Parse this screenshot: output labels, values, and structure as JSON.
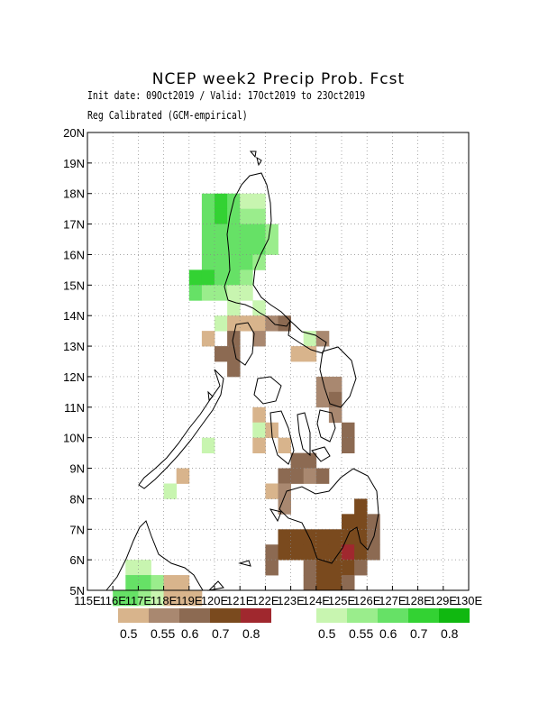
{
  "title": "NCEP week2 Precip Prob. Fcst",
  "subtitle_dates": "Init date: 09Oct2019 / Valid: 17Oct2019 to 23Oct2019",
  "subtitle_method": "Reg Calibrated (GCM-empirical)",
  "map": {
    "lon_range": [
      115,
      130
    ],
    "lat_range": [
      5,
      20
    ],
    "lon_tick_labels": [
      "115E",
      "116E",
      "117E",
      "118E",
      "119E",
      "120E",
      "121E",
      "122E",
      "123E",
      "124E",
      "125E",
      "126E",
      "127E",
      "128E",
      "129E",
      "130E"
    ],
    "lat_tick_labels": [
      "5N",
      "6N",
      "7N",
      "8N",
      "9N",
      "10N",
      "11N",
      "12N",
      "13N",
      "14N",
      "15N",
      "16N",
      "17N",
      "18N",
      "19N",
      "20N"
    ],
    "grid": "dotted",
    "cell_size_deg": 0.5
  },
  "legend_dry": {
    "colors": [
      "#d8b48c",
      "#a98870",
      "#8c6a52",
      "#7a4a1e",
      "#a0282e"
    ],
    "labels": [
      "0.5",
      "0.55",
      "0.6",
      "0.7",
      "0.8"
    ]
  },
  "legend_wet": {
    "colors": [
      "#c8f5b0",
      "#9aed8c",
      "#66e166",
      "#33d233",
      "#10b810"
    ],
    "labels": [
      "0.5",
      "0.55",
      "0.6",
      "0.7",
      "0.8"
    ]
  },
  "chart_data": {
    "type": "heatmap",
    "colors": {
      "d1": "#d8b48c",
      "d2": "#a98870",
      "d3": "#8c6a52",
      "d4": "#7a4a1e",
      "d5": "#a0282e",
      "w1": "#c8f5b0",
      "w2": "#9aed8c",
      "w3": "#66e166",
      "w4": "#33d233"
    },
    "cells": [
      {
        "lon": 119.5,
        "lat": 17.5,
        "c": "w3"
      },
      {
        "lon": 120.0,
        "lat": 17.5,
        "c": "w4"
      },
      {
        "lon": 120.5,
        "lat": 17.5,
        "c": "w3"
      },
      {
        "lon": 121.0,
        "lat": 17.5,
        "c": "w1"
      },
      {
        "lon": 121.5,
        "lat": 17.5,
        "c": "w1"
      },
      {
        "lon": 119.5,
        "lat": 17.0,
        "c": "w3"
      },
      {
        "lon": 120.0,
        "lat": 17.0,
        "c": "w4"
      },
      {
        "lon": 120.5,
        "lat": 17.0,
        "c": "w3"
      },
      {
        "lon": 121.0,
        "lat": 17.0,
        "c": "w2"
      },
      {
        "lon": 121.5,
        "lat": 17.0,
        "c": "w2"
      },
      {
        "lon": 119.5,
        "lat": 16.5,
        "c": "w3"
      },
      {
        "lon": 120.0,
        "lat": 16.5,
        "c": "w3"
      },
      {
        "lon": 120.5,
        "lat": 16.5,
        "c": "w3"
      },
      {
        "lon": 121.0,
        "lat": 16.5,
        "c": "w3"
      },
      {
        "lon": 121.5,
        "lat": 16.5,
        "c": "w3"
      },
      {
        "lon": 122.0,
        "lat": 16.5,
        "c": "w2"
      },
      {
        "lon": 119.5,
        "lat": 16.0,
        "c": "w3"
      },
      {
        "lon": 120.0,
        "lat": 16.0,
        "c": "w3"
      },
      {
        "lon": 120.5,
        "lat": 16.0,
        "c": "w3"
      },
      {
        "lon": 121.0,
        "lat": 16.0,
        "c": "w3"
      },
      {
        "lon": 121.5,
        "lat": 16.0,
        "c": "w3"
      },
      {
        "lon": 122.0,
        "lat": 16.0,
        "c": "w2"
      },
      {
        "lon": 119.5,
        "lat": 15.5,
        "c": "w3"
      },
      {
        "lon": 120.0,
        "lat": 15.5,
        "c": "w3"
      },
      {
        "lon": 120.5,
        "lat": 15.5,
        "c": "w3"
      },
      {
        "lon": 121.0,
        "lat": 15.5,
        "c": "w3"
      },
      {
        "lon": 121.5,
        "lat": 15.5,
        "c": "w2"
      },
      {
        "lon": 119.0,
        "lat": 15.0,
        "c": "w4"
      },
      {
        "lon": 119.5,
        "lat": 15.0,
        "c": "w4"
      },
      {
        "lon": 120.0,
        "lat": 15.0,
        "c": "w3"
      },
      {
        "lon": 120.5,
        "lat": 15.0,
        "c": "w3"
      },
      {
        "lon": 121.0,
        "lat": 15.0,
        "c": "w2"
      },
      {
        "lon": 119.0,
        "lat": 14.5,
        "c": "w3"
      },
      {
        "lon": 119.5,
        "lat": 14.5,
        "c": "w2"
      },
      {
        "lon": 120.0,
        "lat": 14.5,
        "c": "w2"
      },
      {
        "lon": 120.5,
        "lat": 14.5,
        "c": "w1"
      },
      {
        "lon": 121.0,
        "lat": 14.5,
        "c": "w1"
      },
      {
        "lon": 120.5,
        "lat": 14.0,
        "c": "w1"
      },
      {
        "lon": 121.5,
        "lat": 14.0,
        "c": "w1"
      },
      {
        "lon": 120.0,
        "lat": 13.5,
        "c": "w1"
      },
      {
        "lon": 120.5,
        "lat": 13.5,
        "c": "d1"
      },
      {
        "lon": 121.0,
        "lat": 13.5,
        "c": "d1"
      },
      {
        "lon": 121.5,
        "lat": 13.5,
        "c": "d1"
      },
      {
        "lon": 122.0,
        "lat": 13.5,
        "c": "d2"
      },
      {
        "lon": 122.5,
        "lat": 13.5,
        "c": "d3"
      },
      {
        "lon": 119.5,
        "lat": 13.0,
        "c": "d1"
      },
      {
        "lon": 120.5,
        "lat": 13.0,
        "c": "d3"
      },
      {
        "lon": 121.5,
        "lat": 13.0,
        "c": "d2"
      },
      {
        "lon": 123.5,
        "lat": 13.0,
        "c": "w1"
      },
      {
        "lon": 124.0,
        "lat": 13.0,
        "c": "d2"
      },
      {
        "lon": 120.0,
        "lat": 12.5,
        "c": "d3"
      },
      {
        "lon": 120.5,
        "lat": 12.5,
        "c": "d3"
      },
      {
        "lon": 123.0,
        "lat": 12.5,
        "c": "d1"
      },
      {
        "lon": 123.5,
        "lat": 12.5,
        "c": "d1"
      },
      {
        "lon": 120.5,
        "lat": 12.0,
        "c": "d3"
      },
      {
        "lon": 124.0,
        "lat": 11.5,
        "c": "d2"
      },
      {
        "lon": 124.5,
        "lat": 11.5,
        "c": "d2"
      },
      {
        "lon": 124.0,
        "lat": 11.0,
        "c": "d2"
      },
      {
        "lon": 124.5,
        "lat": 11.0,
        "c": "d3"
      },
      {
        "lon": 121.5,
        "lat": 10.5,
        "c": "d1"
      },
      {
        "lon": 124.5,
        "lat": 10.5,
        "c": "d2"
      },
      {
        "lon": 121.5,
        "lat": 10.0,
        "c": "w1"
      },
      {
        "lon": 122.0,
        "lat": 10.0,
        "c": "d1"
      },
      {
        "lon": 125.0,
        "lat": 10.0,
        "c": "d3"
      },
      {
        "lon": 121.5,
        "lat": 9.5,
        "c": "d1"
      },
      {
        "lon": 122.5,
        "lat": 9.5,
        "c": "d1"
      },
      {
        "lon": 125.0,
        "lat": 9.5,
        "c": "d3"
      },
      {
        "lon": 123.0,
        "lat": 9.0,
        "c": "d3"
      },
      {
        "lon": 123.5,
        "lat": 9.0,
        "c": "d3"
      },
      {
        "lon": 122.5,
        "lat": 8.5,
        "c": "d3"
      },
      {
        "lon": 123.0,
        "lat": 8.5,
        "c": "d3"
      },
      {
        "lon": 123.5,
        "lat": 8.5,
        "c": "d2"
      },
      {
        "lon": 124.0,
        "lat": 8.5,
        "c": "d3"
      },
      {
        "lon": 122.0,
        "lat": 8.0,
        "c": "d1"
      },
      {
        "lon": 122.5,
        "lat": 8.0,
        "c": "d2"
      },
      {
        "lon": 122.5,
        "lat": 7.5,
        "c": "d2"
      },
      {
        "lon": 125.5,
        "lat": 7.5,
        "c": "d4"
      },
      {
        "lon": 125.0,
        "lat": 7.0,
        "c": "d4"
      },
      {
        "lon": 125.5,
        "lat": 7.0,
        "c": "d4"
      },
      {
        "lon": 126.0,
        "lat": 7.0,
        "c": "d3"
      },
      {
        "lon": 122.5,
        "lat": 6.5,
        "c": "d4"
      },
      {
        "lon": 123.0,
        "lat": 6.5,
        "c": "d4"
      },
      {
        "lon": 123.5,
        "lat": 6.5,
        "c": "d4"
      },
      {
        "lon": 124.0,
        "lat": 6.5,
        "c": "d4"
      },
      {
        "lon": 124.5,
        "lat": 6.5,
        "c": "d4"
      },
      {
        "lon": 125.0,
        "lat": 6.5,
        "c": "d4"
      },
      {
        "lon": 125.5,
        "lat": 6.5,
        "c": "d4"
      },
      {
        "lon": 126.0,
        "lat": 6.5,
        "c": "d3"
      },
      {
        "lon": 122.0,
        "lat": 6.0,
        "c": "d3"
      },
      {
        "lon": 122.5,
        "lat": 6.0,
        "c": "d4"
      },
      {
        "lon": 123.0,
        "lat": 6.0,
        "c": "d4"
      },
      {
        "lon": 123.5,
        "lat": 6.0,
        "c": "d4"
      },
      {
        "lon": 124.0,
        "lat": 6.0,
        "c": "d4"
      },
      {
        "lon": 124.5,
        "lat": 6.0,
        "c": "d4"
      },
      {
        "lon": 125.0,
        "lat": 6.0,
        "c": "d5"
      },
      {
        "lon": 125.5,
        "lat": 6.0,
        "c": "d4"
      },
      {
        "lon": 126.0,
        "lat": 6.0,
        "c": "d3"
      },
      {
        "lon": 122.0,
        "lat": 5.5,
        "c": "d3"
      },
      {
        "lon": 123.5,
        "lat": 5.5,
        "c": "d3"
      },
      {
        "lon": 124.0,
        "lat": 5.5,
        "c": "d4"
      },
      {
        "lon": 124.5,
        "lat": 5.5,
        "c": "d4"
      },
      {
        "lon": 125.0,
        "lat": 5.5,
        "c": "d4"
      },
      {
        "lon": 125.5,
        "lat": 5.5,
        "c": "d3"
      },
      {
        "lon": 123.5,
        "lat": 5.0,
        "c": "d3"
      },
      {
        "lon": 124.0,
        "lat": 5.0,
        "c": "d4"
      },
      {
        "lon": 124.5,
        "lat": 5.0,
        "c": "d4"
      },
      {
        "lon": 125.0,
        "lat": 5.0,
        "c": "d3"
      },
      {
        "lon": 116.5,
        "lat": 5.5,
        "c": "w1"
      },
      {
        "lon": 117.0,
        "lat": 5.5,
        "c": "w1"
      },
      {
        "lon": 116.5,
        "lat": 5.0,
        "c": "w3"
      },
      {
        "lon": 117.0,
        "lat": 5.0,
        "c": "w3"
      },
      {
        "lon": 117.5,
        "lat": 5.0,
        "c": "w2"
      },
      {
        "lon": 118.0,
        "lat": 5.0,
        "c": "d1"
      },
      {
        "lon": 118.5,
        "lat": 5.0,
        "c": "d1"
      },
      {
        "lon": 116.0,
        "lat": 4.5,
        "c": "w3"
      },
      {
        "lon": 116.5,
        "lat": 4.5,
        "c": "w3"
      },
      {
        "lon": 117.0,
        "lat": 4.5,
        "c": "w2"
      },
      {
        "lon": 117.5,
        "lat": 4.5,
        "c": "w1"
      },
      {
        "lon": 118.0,
        "lat": 4.5,
        "c": "d1"
      },
      {
        "lon": 118.5,
        "lat": 4.5,
        "c": "d1"
      },
      {
        "lon": 119.0,
        "lat": 4.5,
        "c": "d1"
      },
      {
        "lon": 118.5,
        "lat": 8.5,
        "c": "d1"
      },
      {
        "lon": 118.0,
        "lat": 8.0,
        "c": "w1"
      },
      {
        "lon": 119.5,
        "lat": 9.5,
        "c": "w1"
      }
    ]
  }
}
